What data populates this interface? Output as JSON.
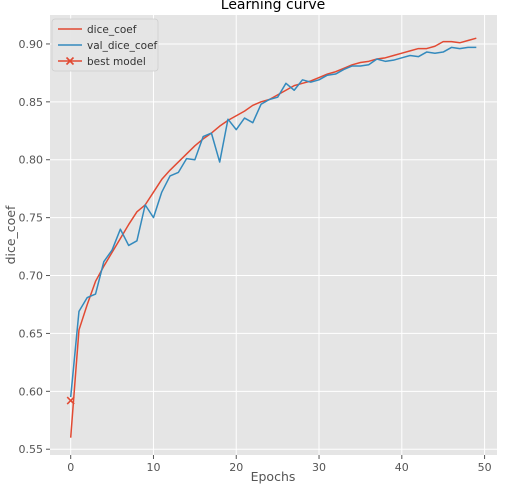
{
  "chart_data": {
    "type": "line",
    "title": "Learning curve",
    "xlabel": "Epochs",
    "ylabel": "dice_coef",
    "xlim": [
      -2.5,
      51.5
    ],
    "ylim": [
      0.545,
      0.925
    ],
    "xticks": [
      0,
      10,
      20,
      30,
      40,
      50
    ],
    "yticks": [
      0.55,
      0.6,
      0.65,
      0.7,
      0.75,
      0.8,
      0.85,
      0.9
    ],
    "ytick_labels": [
      "0.55",
      "0.60",
      "0.65",
      "0.70",
      "0.75",
      "0.80",
      "0.85",
      "0.90"
    ],
    "grid": true,
    "legend_position": "top-left",
    "series": [
      {
        "name": "dice_coef",
        "color": "#E24A33",
        "x": [
          0,
          1,
          2,
          3,
          4,
          5,
          6,
          7,
          8,
          9,
          10,
          11,
          12,
          13,
          14,
          15,
          16,
          17,
          18,
          19,
          20,
          21,
          22,
          23,
          24,
          25,
          26,
          27,
          28,
          29,
          30,
          31,
          32,
          33,
          34,
          35,
          36,
          37,
          38,
          39,
          40,
          41,
          42,
          43,
          44,
          45,
          46,
          47,
          48,
          49
        ],
        "values": [
          0.56,
          0.653,
          0.675,
          0.695,
          0.708,
          0.72,
          0.732,
          0.744,
          0.755,
          0.761,
          0.772,
          0.783,
          0.791,
          0.798,
          0.805,
          0.812,
          0.818,
          0.823,
          0.829,
          0.834,
          0.838,
          0.842,
          0.847,
          0.85,
          0.852,
          0.856,
          0.86,
          0.864,
          0.866,
          0.868,
          0.871,
          0.874,
          0.876,
          0.879,
          0.882,
          0.884,
          0.885,
          0.887,
          0.888,
          0.89,
          0.892,
          0.894,
          0.896,
          0.896,
          0.898,
          0.902,
          0.902,
          0.901,
          0.903,
          0.905
        ]
      },
      {
        "name": "val_dice_coef",
        "color": "#348ABD",
        "x": [
          0,
          1,
          2,
          3,
          4,
          5,
          6,
          7,
          8,
          9,
          10,
          11,
          12,
          13,
          14,
          15,
          16,
          17,
          18,
          19,
          20,
          21,
          22,
          23,
          24,
          25,
          26,
          27,
          28,
          29,
          30,
          31,
          32,
          33,
          34,
          35,
          36,
          37,
          38,
          39,
          40,
          41,
          42,
          43,
          44,
          45,
          46,
          47,
          48,
          49
        ],
        "values": [
          0.595,
          0.669,
          0.681,
          0.684,
          0.712,
          0.722,
          0.74,
          0.726,
          0.73,
          0.761,
          0.75,
          0.772,
          0.786,
          0.789,
          0.801,
          0.8,
          0.82,
          0.823,
          0.798,
          0.835,
          0.826,
          0.836,
          0.832,
          0.848,
          0.852,
          0.854,
          0.866,
          0.86,
          0.869,
          0.867,
          0.869,
          0.873,
          0.874,
          0.878,
          0.881,
          0.881,
          0.882,
          0.887,
          0.885,
          0.886,
          0.888,
          0.89,
          0.889,
          0.893,
          0.892,
          0.893,
          0.897,
          0.896,
          0.897,
          0.897
        ]
      }
    ],
    "best_model": {
      "name": "best model",
      "color": "#E24A33",
      "x": 0,
      "y": 0.592
    }
  }
}
